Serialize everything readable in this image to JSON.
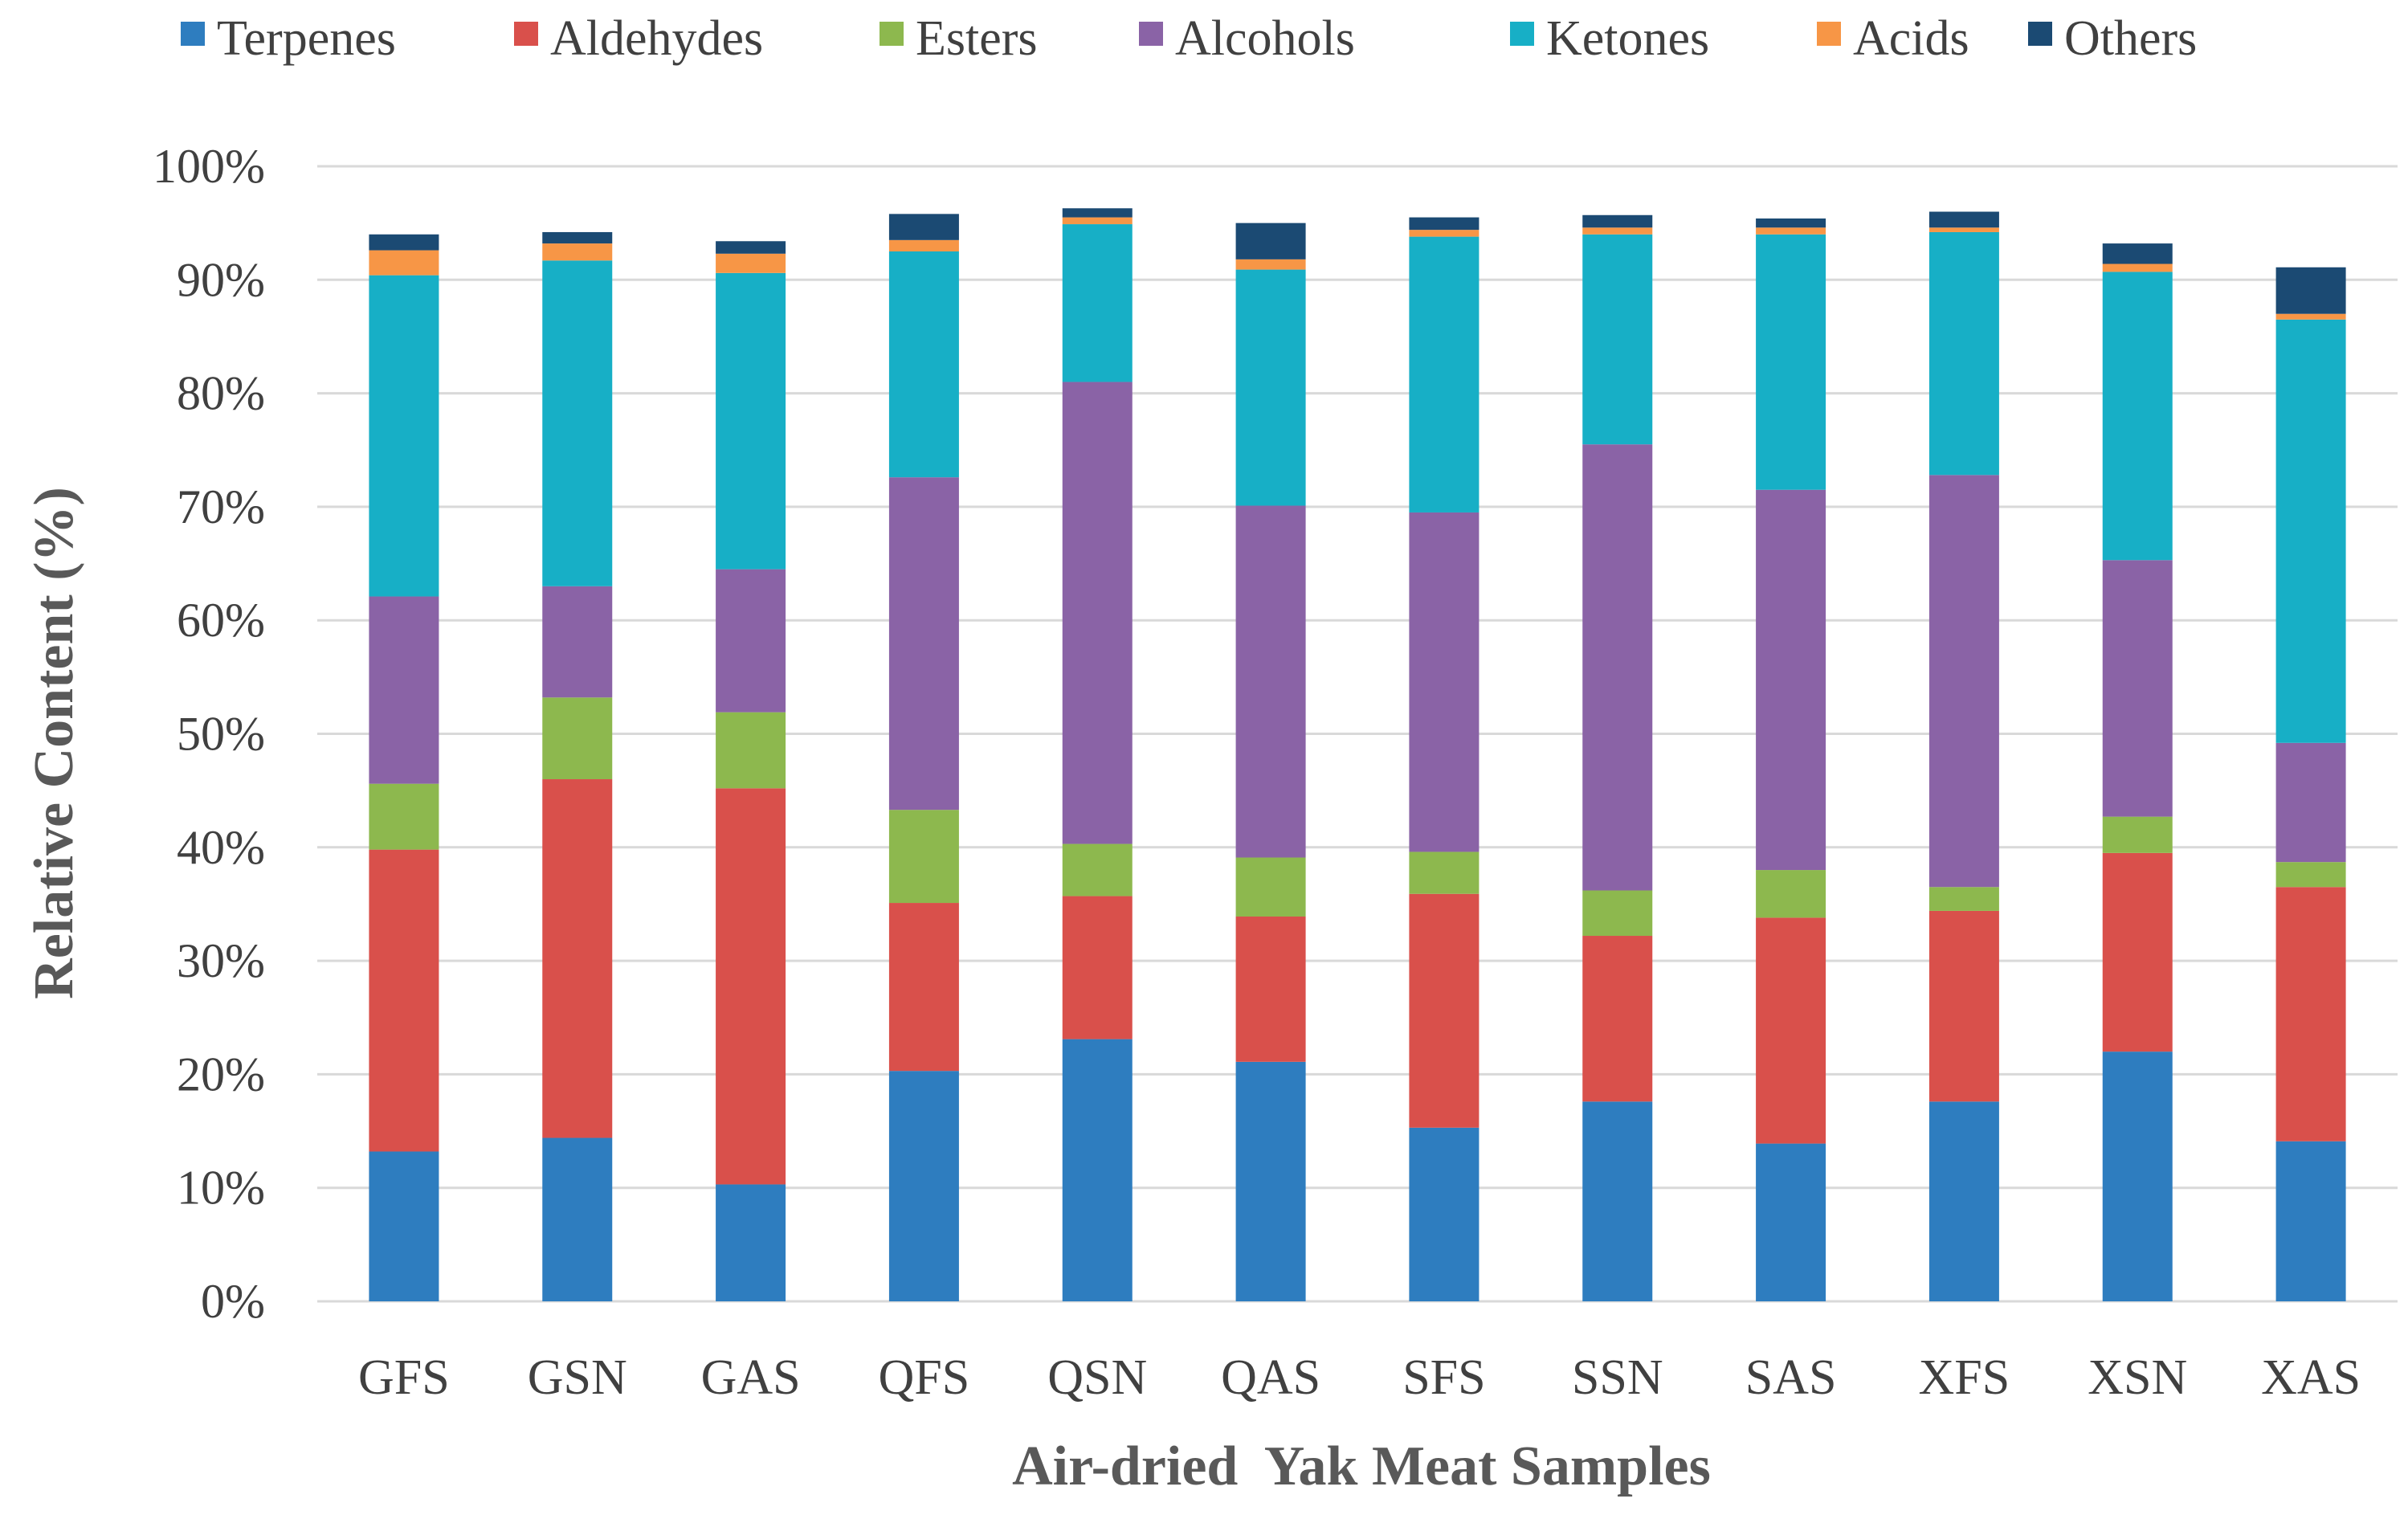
{
  "chart_data": {
    "type": "bar",
    "stacked": true,
    "xlabel": "Air-dried  Yak Meat Samples",
    "ylabel": "Relative Content (%)",
    "ylim": [
      0,
      100
    ],
    "yticks": [
      "0%",
      "10%",
      "20%",
      "30%",
      "40%",
      "50%",
      "60%",
      "70%",
      "80%",
      "90%",
      "100%"
    ],
    "grid": true,
    "legend_position": "top",
    "categories": [
      "GFS",
      "GSN",
      "GAS",
      "QFS",
      "QSN",
      "QAS",
      "SFS",
      "SSN",
      "SAS",
      "XFS",
      "XSN",
      "XAS"
    ],
    "series": [
      {
        "name": "Terpenes",
        "color": "#2e7dbf",
        "values": [
          13.2,
          14.4,
          10.3,
          20.3,
          23.1,
          21.1,
          15.3,
          17.6,
          13.9,
          17.6,
          22.0,
          14.1
        ]
      },
      {
        "name": "Aldehydes",
        "color": "#d9504b",
        "values": [
          26.6,
          31.6,
          34.9,
          14.8,
          12.6,
          12.8,
          20.6,
          14.6,
          19.9,
          16.8,
          17.5,
          22.4
        ]
      },
      {
        "name": "Esters",
        "color": "#8db84e",
        "values": [
          5.8,
          7.2,
          6.7,
          8.2,
          4.6,
          5.2,
          3.7,
          4.0,
          4.2,
          2.1,
          3.2,
          2.2
        ]
      },
      {
        "name": "Alcohols",
        "color": "#8a63a6",
        "values": [
          16.5,
          9.8,
          12.6,
          29.3,
          40.7,
          31.0,
          29.9,
          39.3,
          33.5,
          36.3,
          22.6,
          10.5
        ]
      },
      {
        "name": "Ketones",
        "color": "#17afc6",
        "values": [
          28.3,
          28.7,
          26.1,
          19.9,
          13.9,
          20.8,
          24.3,
          18.5,
          22.5,
          21.4,
          25.4,
          37.3
        ]
      },
      {
        "name": "Acids",
        "color": "#f79646",
        "values": [
          2.2,
          1.5,
          1.7,
          1.0,
          0.6,
          0.9,
          0.6,
          0.6,
          0.6,
          0.4,
          0.7,
          0.5
        ]
      },
      {
        "name": "Others",
        "color": "#1b4a73",
        "values": [
          1.4,
          1.0,
          1.1,
          2.3,
          0.8,
          3.2,
          1.1,
          1.1,
          0.8,
          1.4,
          1.8,
          4.1
        ]
      }
    ]
  }
}
